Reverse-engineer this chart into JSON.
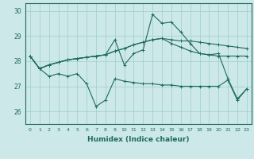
{
  "xlabel": "Humidex (Indice chaleur)",
  "xlim": [
    -0.5,
    23.5
  ],
  "ylim": [
    25.5,
    30.3
  ],
  "yticks": [
    26,
    27,
    28,
    29,
    30
  ],
  "xticks": [
    0,
    1,
    2,
    3,
    4,
    5,
    6,
    7,
    8,
    9,
    10,
    11,
    12,
    13,
    14,
    15,
    16,
    17,
    18,
    19,
    20,
    21,
    22,
    23
  ],
  "bg_color": "#cce8e8",
  "line_color": "#1e6b5e",
  "series": [
    [
      28.2,
      27.7,
      27.85,
      27.95,
      28.05,
      28.1,
      28.15,
      28.2,
      28.25,
      28.85,
      27.85,
      28.3,
      28.45,
      29.85,
      29.5,
      29.55,
      29.15,
      28.7,
      28.3,
      28.25,
      28.3,
      27.3,
      26.5,
      26.9
    ],
    [
      28.2,
      27.7,
      27.85,
      27.95,
      28.05,
      28.1,
      28.15,
      28.2,
      28.25,
      28.4,
      28.5,
      28.65,
      28.75,
      28.85,
      28.9,
      28.7,
      28.55,
      28.4,
      28.3,
      28.25,
      28.2,
      28.2,
      28.2,
      28.2
    ],
    [
      28.2,
      27.7,
      27.85,
      27.95,
      28.05,
      28.1,
      28.15,
      28.2,
      28.25,
      28.4,
      28.5,
      28.65,
      28.75,
      28.85,
      28.9,
      28.85,
      28.8,
      28.8,
      28.75,
      28.7,
      28.65,
      28.6,
      28.55,
      28.5
    ],
    [
      28.2,
      27.7,
      27.4,
      27.5,
      27.4,
      27.5,
      27.1,
      26.2,
      26.45,
      27.3,
      27.2,
      27.15,
      27.1,
      27.1,
      27.05,
      27.05,
      27.0,
      27.0,
      27.0,
      27.0,
      27.0,
      27.25,
      26.45,
      26.9
    ]
  ]
}
